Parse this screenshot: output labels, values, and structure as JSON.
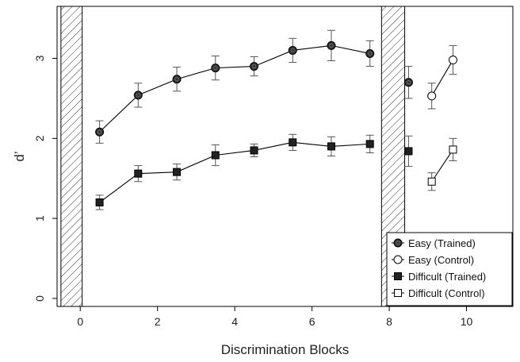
{
  "chart_data": {
    "type": "line",
    "title": "",
    "xlabel": "Discrimination Blocks",
    "ylabel": "d’",
    "xlim": [
      -0.6,
      11.2
    ],
    "ylim": [
      -0.1,
      3.65
    ],
    "x_ticks": [
      0,
      2,
      4,
      6,
      8,
      10
    ],
    "y_ticks": [
      0,
      1,
      2,
      3
    ],
    "grid": false,
    "legend_position": "bottom-right",
    "shaded_regions": [
      {
        "x": [
          -0.5,
          0.05
        ]
      },
      {
        "x": [
          7.8,
          8.4
        ]
      }
    ],
    "series": [
      {
        "name": "Easy (Trained)",
        "marker": "filled-circle",
        "segments": [
          {
            "x": [
              0.5,
              1.5,
              2.5,
              3.5,
              4.5,
              5.5,
              6.5,
              7.5
            ],
            "y": [
              2.08,
              2.54,
              2.74,
              2.88,
              2.9,
              3.1,
              3.16,
              3.06
            ],
            "err": [
              0.14,
              0.15,
              0.15,
              0.15,
              0.12,
              0.15,
              0.19,
              0.16
            ]
          },
          {
            "x": [
              8.5
            ],
            "y": [
              2.7
            ],
            "err": [
              0.2
            ]
          }
        ]
      },
      {
        "name": "Easy (Control)",
        "marker": "open-circle",
        "segments": [
          {
            "x": [
              9.1,
              9.65
            ],
            "y": [
              2.53,
              2.98
            ],
            "err": [
              0.16,
              0.18
            ]
          }
        ]
      },
      {
        "name": "Difficult (Trained)",
        "marker": "filled-square",
        "segments": [
          {
            "x": [
              0.5,
              1.5,
              2.5,
              3.5,
              4.5,
              5.5,
              6.5,
              7.5
            ],
            "y": [
              1.2,
              1.56,
              1.58,
              1.79,
              1.85,
              1.95,
              1.9,
              1.93
            ],
            "err": [
              0.09,
              0.1,
              0.1,
              0.13,
              0.08,
              0.1,
              0.12,
              0.11
            ]
          },
          {
            "x": [
              8.5
            ],
            "y": [
              1.84
            ],
            "err": [
              0.19
            ]
          }
        ]
      },
      {
        "name": "Difficult (Control)",
        "marker": "open-square",
        "segments": [
          {
            "x": [
              9.1,
              9.65
            ],
            "y": [
              1.46,
              1.86
            ],
            "err": [
              0.11,
              0.14
            ]
          }
        ]
      }
    ]
  }
}
